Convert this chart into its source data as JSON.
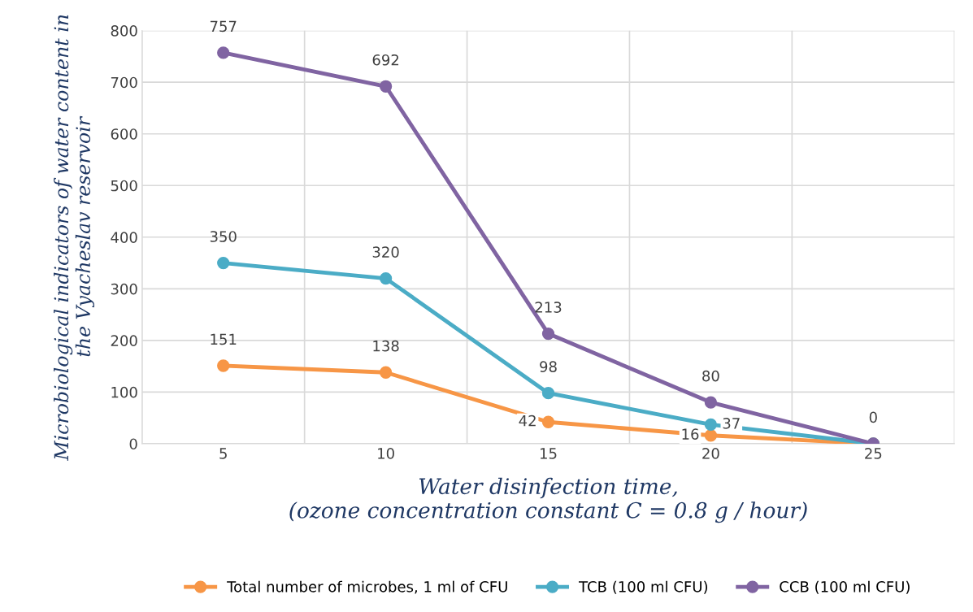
{
  "chart_data": {
    "type": "line",
    "xlabel": "Water disinfection time,\n(ozone concentration constant C = 0.8 g / hour)",
    "ylabel": "Microbiological indicators of water content in\nthe Vyacheslav reservoir",
    "categories": [
      "5",
      "10",
      "15",
      "20",
      "25"
    ],
    "series": [
      {
        "name": "Total number of microbes, 1 ml of CFU",
        "color": "#f79646",
        "values": [
          151,
          138,
          42,
          16,
          0
        ],
        "value_labels": [
          "151",
          "138",
          "42",
          "16",
          "0"
        ]
      },
      {
        "name": "TCB (100 ml CFU)",
        "color": "#4bacc6",
        "values": [
          350,
          320,
          98,
          37,
          0
        ],
        "value_labels": [
          "350",
          "320",
          "98",
          "37",
          null
        ]
      },
      {
        "name": "CCB (100 ml CFU)",
        "color": "#8064a2",
        "values": [
          757,
          692,
          213,
          80,
          0
        ],
        "value_labels": [
          "757",
          "692",
          "213",
          "80",
          null
        ]
      }
    ],
    "ylim": [
      0,
      800
    ],
    "yticks": [
      0,
      100,
      200,
      300,
      400,
      500,
      600,
      700,
      800
    ],
    "grid": true,
    "legend": "bottom",
    "marker": "circle",
    "line_style": "solid"
  }
}
